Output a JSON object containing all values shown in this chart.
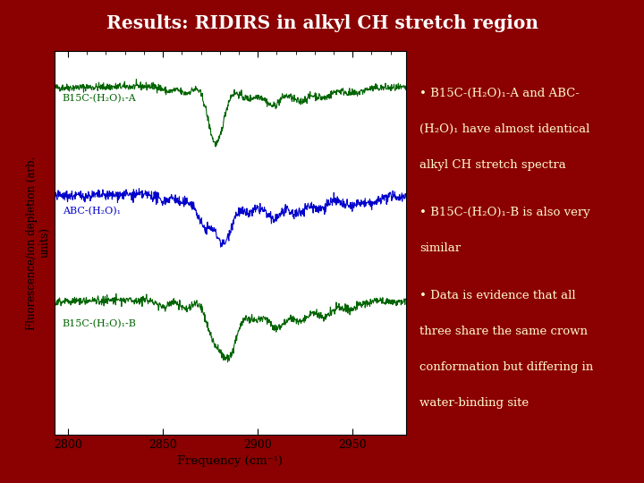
{
  "title": "Results: RIDIRS in alkyl CH stretch region",
  "title_bg": "#00008B",
  "title_color": "#FFFFFF",
  "bg_color": "#8B0000",
  "plot_bg": "#FFFFFF",
  "xmin": 2793,
  "xmax": 2978,
  "xticks": [
    2800,
    2850,
    2900,
    2950
  ],
  "xlabel": "Frequency (cm⁻¹)",
  "ylabel": "Fluorescence/ion depletion (arb.\nunits)",
  "spectrum1_color": "#006400",
  "spectrum2_color": "#0000CC",
  "spectrum3_color": "#006400",
  "label1": "B15C-(H₂O)₁-A",
  "label2": "ABC-(H₂O)₁",
  "label3": "B15C-(H₂O)₁-B",
  "bullet1_line1": "• B15C-(H₂O)₁-A and ABC-",
  "bullet1_line2": "(H₂O)₁ have almost identical",
  "bullet1_line3": "alkyl CH stretch spectra",
  "bullet2_line1": "• B15C-(H₂O)₁-B is also very",
  "bullet2_line2": "similar",
  "bullet3_line1": "• Data is evidence that all",
  "bullet3_line2": "three share the same crown",
  "bullet3_line3": "conformation but differing in",
  "bullet3_line4": "water-binding site",
  "text_color": "#FFFACD"
}
